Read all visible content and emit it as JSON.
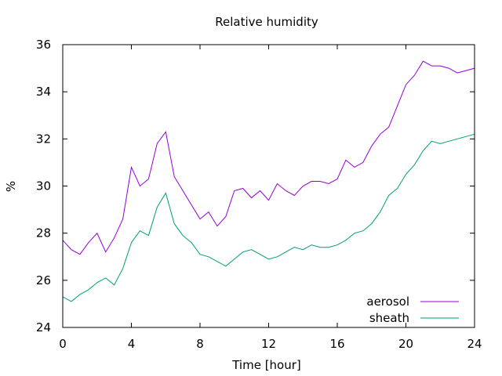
{
  "chart_data": {
    "type": "line",
    "title": "Relative humidity",
    "xlabel": "Time [hour]",
    "ylabel": "%",
    "xlim": [
      0,
      24
    ],
    "ylim": [
      24,
      36
    ],
    "xticks": [
      "0",
      "4",
      "8",
      "12",
      "16",
      "20",
      "24"
    ],
    "yticks": [
      "24",
      "26",
      "28",
      "30",
      "32",
      "34",
      "36"
    ],
    "grid": false,
    "legend_position": "bottom-right",
    "x": [
      0,
      0.5,
      1,
      1.5,
      2,
      2.5,
      3,
      3.5,
      4,
      4.5,
      5,
      5.5,
      6,
      6.5,
      7,
      7.5,
      8,
      8.5,
      9,
      9.5,
      10,
      10.5,
      11,
      11.5,
      12,
      12.5,
      13,
      13.5,
      14,
      14.5,
      15,
      15.5,
      16,
      16.5,
      17,
      17.5,
      18,
      18.5,
      19,
      19.5,
      20,
      20.5,
      21,
      21.5,
      22,
      22.5,
      23,
      23.5,
      24
    ],
    "series": [
      {
        "name": "aerosol",
        "color": "#9400d3",
        "values": [
          27.7,
          27.3,
          27.1,
          27.6,
          28.0,
          27.2,
          27.8,
          28.6,
          30.8,
          30.0,
          30.3,
          31.8,
          32.3,
          30.4,
          29.8,
          29.2,
          28.6,
          28.9,
          28.3,
          28.7,
          29.8,
          29.9,
          29.5,
          29.8,
          29.4,
          30.1,
          29.8,
          29.6,
          30.0,
          30.2,
          30.2,
          30.1,
          30.3,
          31.1,
          30.8,
          31.0,
          31.7,
          32.2,
          32.5,
          33.4,
          34.3,
          34.7,
          35.3,
          35.1,
          35.1,
          35.0,
          34.8,
          34.9,
          35.0
        ]
      },
      {
        "name": "sheath",
        "color": "#009e73",
        "values": [
          25.3,
          25.1,
          25.4,
          25.6,
          25.9,
          26.1,
          25.8,
          26.5,
          27.6,
          28.1,
          27.9,
          29.1,
          29.7,
          28.4,
          27.9,
          27.6,
          27.1,
          27.0,
          26.8,
          26.6,
          26.9,
          27.2,
          27.3,
          27.1,
          26.9,
          27.0,
          27.2,
          27.4,
          27.3,
          27.5,
          27.4,
          27.4,
          27.5,
          27.7,
          28.0,
          28.1,
          28.4,
          28.9,
          29.6,
          29.9,
          30.5,
          30.9,
          31.5,
          31.9,
          31.8,
          31.9,
          32.0,
          32.1,
          32.2
        ]
      }
    ]
  }
}
